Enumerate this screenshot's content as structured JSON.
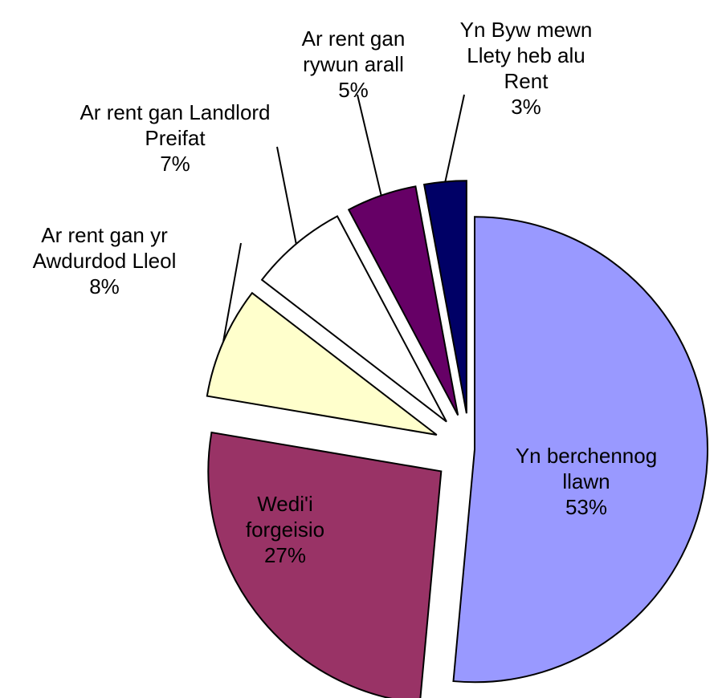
{
  "chart_data": {
    "type": "pie",
    "labels": [
      "Yn berchennog llawn",
      "Wedi'i forgeisio",
      "Ar rent gan yr Awdurdod Lleol",
      "Ar rent gan Landlord Preifat",
      "Ar rent gan rywun arall",
      "Yn Byw mewn Llety heb alu Rent"
    ],
    "values": [
      53,
      27,
      8,
      7,
      5,
      3
    ],
    "value_labels": [
      "53%",
      "27%",
      "8%",
      "7%",
      "5%",
      "3%"
    ],
    "colors": [
      "#9999ff",
      "#993366",
      "#ffffcc",
      "#ffffff",
      "#660066",
      "#000066"
    ]
  }
}
